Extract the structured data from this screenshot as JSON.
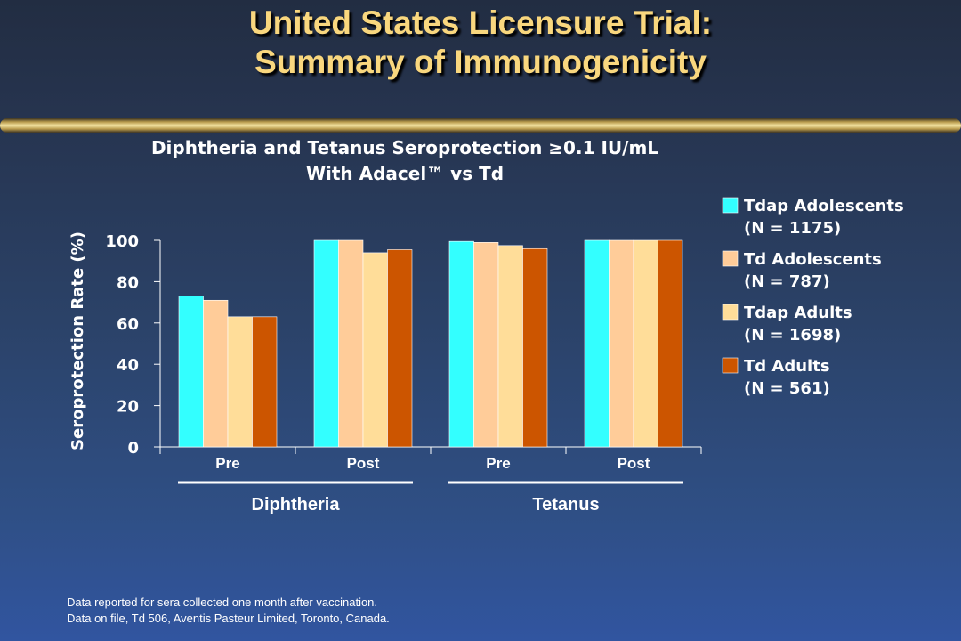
{
  "slide": {
    "title_line1": "United States Licensure Trial:",
    "title_line2": "Summary of Immunogenicity"
  },
  "chart_data": {
    "type": "bar",
    "title_line1": "Diphtheria and Tetanus Seroprotection ≥0.1 IU/mL",
    "title_line2": "With Adacel™ vs Td",
    "ylabel": "Seroprotection Rate (%)",
    "xlabel": "",
    "ylim": [
      0,
      100
    ],
    "yticks": [
      0,
      20,
      40,
      60,
      80,
      100
    ],
    "categories": [
      "Pre",
      "Post",
      "Pre",
      "Post"
    ],
    "groups": [
      "Diphtheria",
      "Tetanus"
    ],
    "series": [
      {
        "name": "Tdap Adolescents",
        "n_label": "(N = 1175)",
        "color": "#33ffff",
        "values": [
          73,
          100,
          99.5,
          100
        ]
      },
      {
        "name": "Td Adolescents",
        "n_label": "(N = 787)",
        "color": "#ffcc99",
        "values": [
          71,
          100,
          99,
          100
        ]
      },
      {
        "name": "Tdap Adults",
        "n_label": "(N = 1698)",
        "color": "#ffdd99",
        "values": [
          63,
          94,
          97.5,
          100
        ]
      },
      {
        "name": "Td Adults",
        "n_label": "(N = 561)",
        "color": "#cc5500",
        "values": [
          63,
          95.5,
          96,
          100
        ]
      }
    ],
    "grid": false,
    "legend_position": "right"
  },
  "footnote": {
    "line1": "Data reported for sera collected one month after vaccination.",
    "line2": "Data on file, Td 506, Aventis Pasteur Limited, Toronto, Canada."
  }
}
